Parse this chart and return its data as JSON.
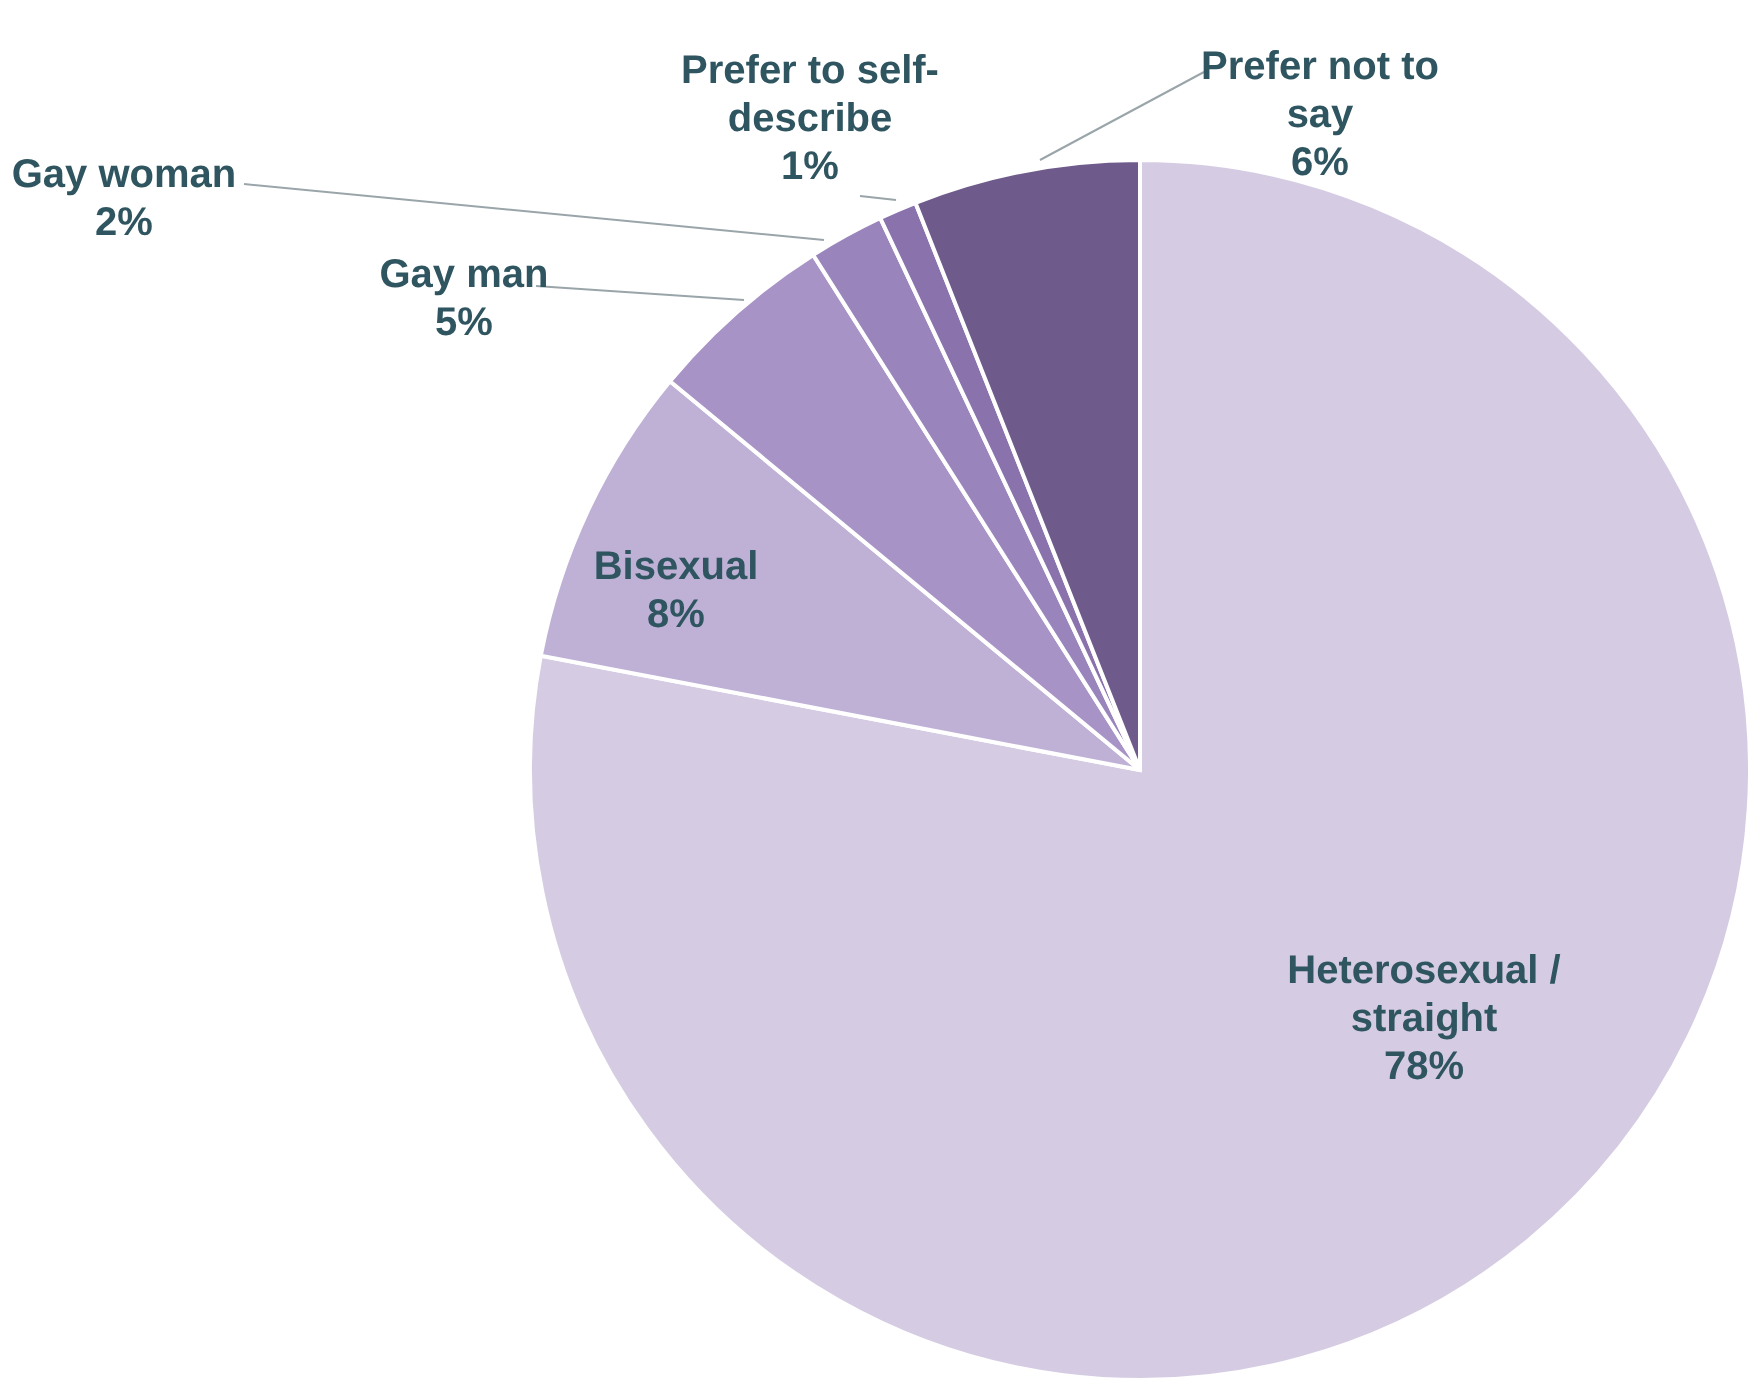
{
  "chart_data": {
    "type": "pie",
    "categories": [
      "Heterosexual / straight",
      "Bisexual",
      "Gay man",
      "Gay woman",
      "Prefer to self-describe",
      "Prefer not to say"
    ],
    "values": [
      78,
      8,
      5,
      2,
      1,
      6
    ],
    "value_labels": [
      "78%",
      "8%",
      "5%",
      "2%",
      "1%",
      "6%"
    ],
    "colors": [
      "#d5cce3",
      "#bfb0d6",
      "#a893c7",
      "#9a84bc",
      "#8a72ad",
      "#6f5b8b"
    ]
  }
}
